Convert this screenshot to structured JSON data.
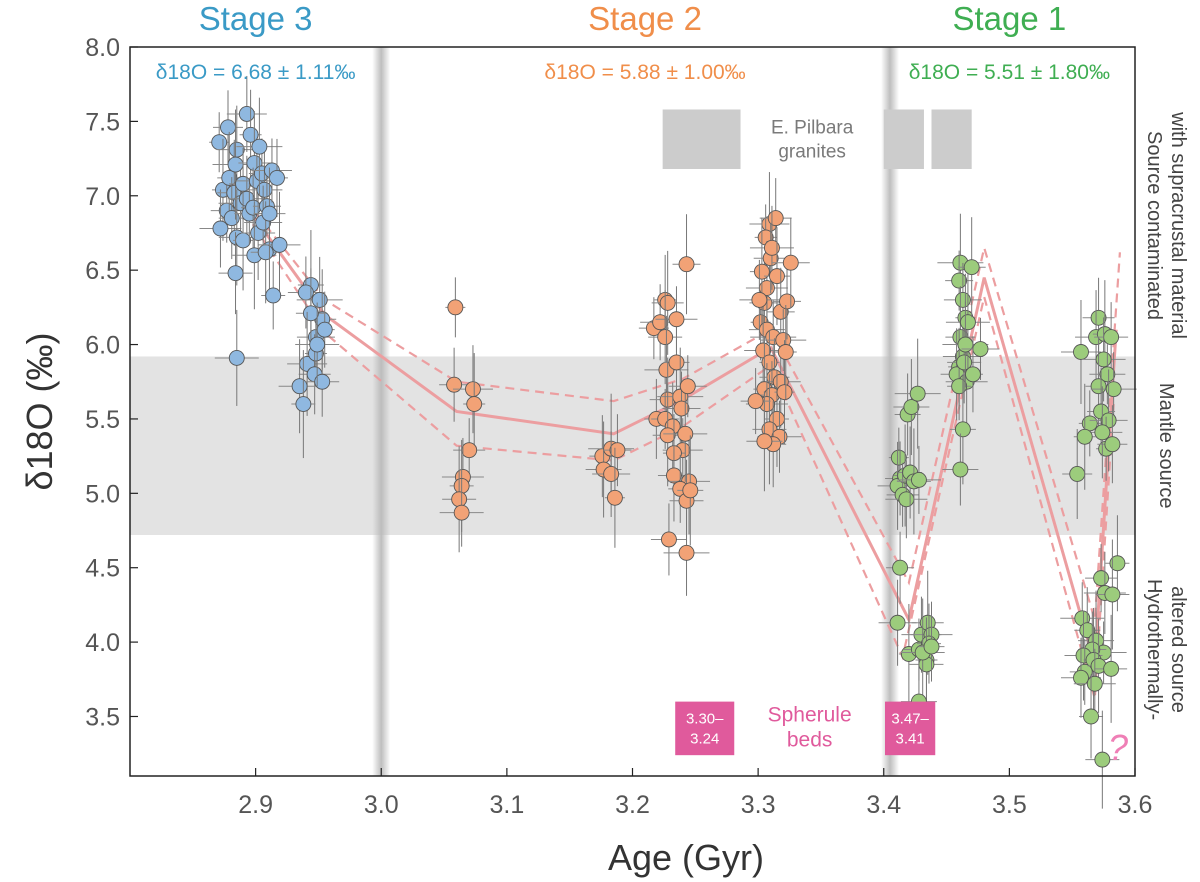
{
  "chart_data": {
    "type": "scatter",
    "xlabel": "Age (Gyr)",
    "ylabel": "δ18O (‰)",
    "xlim": [
      2.8,
      3.6
    ],
    "ylim": [
      3.1,
      8.0
    ],
    "x_ticks": [
      "2.9",
      "3.0",
      "3.1",
      "3.2",
      "3.3",
      "3.4",
      "3.5",
      "3.6"
    ],
    "y_ticks": [
      "3.5",
      "4.0",
      "4.5",
      "5.0",
      "5.5",
      "6.0",
      "6.5",
      "7.0",
      "7.5",
      "8.0"
    ],
    "grid": false,
    "colors": {
      "stage3": "#8fb8e0",
      "stage2": "#f2a276",
      "stage1": "#9ccc7c",
      "trend": "#ec9ea0",
      "box": "#e05a9c",
      "band": "#e3e3e3",
      "granite": "#cccccc"
    },
    "stages": [
      {
        "name": "Stage 3",
        "color": "#3a9ac6",
        "mean": "δ18O = 6.68 ± 1.11‰",
        "x": 2.9
      },
      {
        "name": "Stage 2",
        "color": "#f08e4a",
        "mean": "δ18O = 5.88 ± 1.00‰",
        "x": 3.21
      },
      {
        "name": "Stage 1",
        "color": "#3fae52",
        "mean": "δ18O = 5.51 ± 1.80‰",
        "x": 3.5
      }
    ],
    "stage_boundaries": [
      3.0,
      3.405
    ],
    "mantle_band": [
      4.72,
      5.92
    ],
    "right_labels": [
      {
        "lines": [
          "Source contaminated",
          "with supracrustal material"
        ],
        "y": 6.8
      },
      {
        "lines": [
          "Mantle source"
        ],
        "y": 5.32
      },
      {
        "lines": [
          "Hydrothermally-",
          "altered source"
        ],
        "y": 3.95
      }
    ],
    "granites": {
      "label": [
        "E. Pilbara",
        "granites"
      ],
      "bars": [
        [
          3.224,
          3.258
        ],
        [
          3.256,
          3.286
        ],
        [
          3.4,
          3.432
        ],
        [
          3.438,
          3.47
        ]
      ],
      "yrange": [
        7.18,
        7.58
      ]
    },
    "spherule": {
      "label": [
        "Spherule",
        "beds"
      ],
      "boxes": [
        {
          "lines": [
            "3.30–",
            "3.24"
          ],
          "x": [
            3.234,
            3.281
          ]
        },
        {
          "lines": [
            "3.47–",
            "3.41"
          ],
          "x": [
            3.401,
            3.441
          ]
        }
      ],
      "yrange": [
        3.24,
        3.6
      ]
    },
    "question_mark": "?",
    "trend": {
      "mean": [
        [
          2.878,
          7.1
        ],
        [
          2.955,
          6.2
        ],
        [
          3.06,
          5.55
        ],
        [
          3.185,
          5.4
        ],
        [
          3.24,
          5.63
        ],
        [
          3.31,
          5.98
        ],
        [
          3.42,
          4.15
        ],
        [
          3.48,
          6.45
        ],
        [
          3.568,
          3.85
        ],
        [
          3.585,
          6.1
        ]
      ],
      "upper": [
        [
          2.878,
          7.12
        ],
        [
          2.955,
          6.3
        ],
        [
          3.06,
          5.75
        ],
        [
          3.185,
          5.62
        ],
        [
          3.24,
          5.77
        ],
        [
          3.31,
          6.1
        ],
        [
          3.42,
          4.4
        ],
        [
          3.48,
          6.65
        ],
        [
          3.568,
          4.15
        ],
        [
          3.588,
          6.62
        ]
      ],
      "lower": [
        [
          2.878,
          7.06
        ],
        [
          2.955,
          6.08
        ],
        [
          3.06,
          5.32
        ],
        [
          3.185,
          5.22
        ],
        [
          3.24,
          5.45
        ],
        [
          3.31,
          5.86
        ],
        [
          3.415,
          3.9
        ],
        [
          3.48,
          6.32
        ],
        [
          3.568,
          3.62
        ],
        [
          3.583,
          5.6
        ]
      ]
    },
    "series": [
      {
        "name": "Stage 3",
        "color": "#8fb8e0",
        "points": [
          [
            2.871,
            7.36
          ],
          [
            2.878,
            7.46
          ],
          [
            2.885,
            7.31
          ],
          [
            2.874,
            7.04
          ],
          [
            2.877,
            6.9
          ],
          [
            2.872,
            6.78
          ],
          [
            2.879,
            7.12
          ],
          [
            2.883,
            7.02
          ],
          [
            2.888,
            6.95
          ],
          [
            2.881,
            6.85
          ],
          [
            2.885,
            6.72
          ],
          [
            2.884,
            7.21
          ],
          [
            2.89,
            7.08
          ],
          [
            2.893,
            6.98
          ],
          [
            2.89,
            6.7
          ],
          [
            2.895,
            6.88
          ],
          [
            2.893,
            7.55
          ],
          [
            2.896,
            7.41
          ],
          [
            2.899,
            7.22
          ],
          [
            2.901,
            7.1
          ],
          [
            2.898,
            6.92
          ],
          [
            2.902,
            6.75
          ],
          [
            2.899,
            6.6
          ],
          [
            2.905,
            7.15
          ],
          [
            2.907,
            7.04
          ],
          [
            2.903,
            7.33
          ],
          [
            2.909,
            6.93
          ],
          [
            2.906,
            6.82
          ],
          [
            2.911,
            6.64
          ],
          [
            2.908,
            6.62
          ],
          [
            2.913,
            7.17
          ],
          [
            2.917,
            7.12
          ],
          [
            2.911,
            6.88
          ],
          [
            2.919,
            6.67
          ],
          [
            2.914,
            6.33
          ],
          [
            2.884,
            6.48
          ],
          [
            2.885,
            5.91
          ],
          [
            2.944,
            6.4
          ],
          [
            2.94,
            6.35
          ],
          [
            2.951,
            6.3
          ],
          [
            2.953,
            6.17
          ],
          [
            2.948,
            6.05
          ],
          [
            2.955,
            6.1
          ],
          [
            2.944,
            6.21
          ],
          [
            2.941,
            5.87
          ],
          [
            2.948,
            5.94
          ],
          [
            2.947,
            5.8
          ],
          [
            2.935,
            5.72
          ],
          [
            2.938,
            5.6
          ],
          [
            2.953,
            5.75
          ],
          [
            2.949,
            6.0
          ]
        ]
      },
      {
        "name": "Stage 2",
        "color": "#f2a276",
        "points": [
          [
            3.059,
            6.25
          ],
          [
            3.058,
            5.73
          ],
          [
            3.073,
            5.7
          ],
          [
            3.074,
            5.6
          ],
          [
            3.07,
            5.29
          ],
          [
            3.065,
            5.11
          ],
          [
            3.064,
            5.05
          ],
          [
            3.062,
            4.96
          ],
          [
            3.064,
            4.87
          ],
          [
            3.176,
            5.25
          ],
          [
            3.177,
            5.16
          ],
          [
            3.183,
            5.3
          ],
          [
            3.188,
            5.29
          ],
          [
            3.183,
            5.13
          ],
          [
            3.186,
            4.97
          ],
          [
            3.217,
            6.11
          ],
          [
            3.222,
            6.15
          ],
          [
            3.226,
            6.3
          ],
          [
            3.228,
            6.28
          ],
          [
            3.235,
            6.17
          ],
          [
            3.219,
            5.5
          ],
          [
            3.226,
            6.05
          ],
          [
            3.227,
            5.83
          ],
          [
            3.235,
            5.88
          ],
          [
            3.228,
            5.63
          ],
          [
            3.238,
            5.65
          ],
          [
            3.226,
            5.5
          ],
          [
            3.239,
            5.57
          ],
          [
            3.232,
            5.45
          ],
          [
            3.228,
            5.39
          ],
          [
            3.24,
            5.29
          ],
          [
            3.233,
            5.27
          ],
          [
            3.233,
            5.12
          ],
          [
            3.245,
            5.08
          ],
          [
            3.238,
            5.03
          ],
          [
            3.243,
            4.95
          ],
          [
            3.242,
            5.4
          ],
          [
            3.246,
            5.02
          ],
          [
            3.229,
            4.69
          ],
          [
            3.243,
            4.6
          ],
          [
            3.243,
            6.54
          ],
          [
            3.244,
            5.72
          ],
          [
            3.302,
            6.15
          ],
          [
            3.305,
            6.28
          ],
          [
            3.309,
            6.81
          ],
          [
            3.306,
            6.72
          ],
          [
            3.314,
            6.85
          ],
          [
            3.307,
            6.38
          ],
          [
            3.303,
            6.49
          ],
          [
            3.31,
            6.58
          ],
          [
            3.311,
            6.65
          ],
          [
            3.315,
            6.46
          ],
          [
            3.307,
            6.1
          ],
          [
            3.312,
            6.05
          ],
          [
            3.318,
            6.22
          ],
          [
            3.304,
            5.96
          ],
          [
            3.309,
            5.88
          ],
          [
            3.313,
            5.78
          ],
          [
            3.318,
            5.75
          ],
          [
            3.305,
            5.7
          ],
          [
            3.311,
            5.66
          ],
          [
            3.307,
            5.6
          ],
          [
            3.315,
            5.5
          ],
          [
            3.309,
            5.43
          ],
          [
            3.317,
            5.38
          ],
          [
            3.312,
            5.33
          ],
          [
            3.305,
            5.35
          ],
          [
            3.32,
            6.03
          ],
          [
            3.323,
            6.29
          ],
          [
            3.326,
            6.55
          ],
          [
            3.321,
            5.68
          ],
          [
            3.298,
            5.62
          ],
          [
            3.301,
            6.3
          ],
          [
            3.322,
            5.95
          ]
        ]
      },
      {
        "name": "Stage 1",
        "color": "#9ccc7c",
        "points": [
          [
            3.412,
            5.24
          ],
          [
            3.413,
            5.1
          ],
          [
            3.411,
            5.05
          ],
          [
            3.417,
            5.12
          ],
          [
            3.415,
            4.99
          ],
          [
            3.418,
            4.96
          ],
          [
            3.421,
            5.14
          ],
          [
            3.424,
            5.08
          ],
          [
            3.428,
            5.09
          ],
          [
            3.419,
            5.53
          ],
          [
            3.422,
            5.58
          ],
          [
            3.427,
            5.67
          ],
          [
            3.413,
            4.5
          ],
          [
            3.411,
            4.13
          ],
          [
            3.42,
            3.92
          ],
          [
            3.428,
            3.95
          ],
          [
            3.43,
            4.05
          ],
          [
            3.434,
            3.88
          ],
          [
            3.435,
            4.13
          ],
          [
            3.438,
            4.05
          ],
          [
            3.436,
            3.99
          ],
          [
            3.434,
            3.85
          ],
          [
            3.431,
            3.93
          ],
          [
            3.438,
            3.97
          ],
          [
            3.428,
            3.6
          ],
          [
            3.461,
            6.55
          ],
          [
            3.46,
            6.43
          ],
          [
            3.463,
            6.3
          ],
          [
            3.465,
            6.18
          ],
          [
            3.461,
            6.05
          ],
          [
            3.463,
            5.92
          ],
          [
            3.46,
            5.85
          ],
          [
            3.458,
            5.8
          ],
          [
            3.466,
            5.75
          ],
          [
            3.46,
            5.72
          ],
          [
            3.464,
            5.88
          ],
          [
            3.467,
            6.15
          ],
          [
            3.463,
            5.43
          ],
          [
            3.461,
            5.16
          ],
          [
            3.465,
            6.0
          ],
          [
            3.47,
            6.52
          ],
          [
            3.477,
            5.97
          ],
          [
            3.471,
            5.8
          ],
          [
            3.554,
            5.13
          ],
          [
            3.557,
            5.95
          ],
          [
            3.564,
            5.47
          ],
          [
            3.571,
            6.18
          ],
          [
            3.569,
            6.05
          ],
          [
            3.576,
            6.07
          ],
          [
            3.581,
            6.05
          ],
          [
            3.575,
            5.9
          ],
          [
            3.571,
            5.72
          ],
          [
            3.578,
            5.8
          ],
          [
            3.583,
            5.7
          ],
          [
            3.573,
            5.55
          ],
          [
            3.579,
            5.49
          ],
          [
            3.577,
            5.3
          ],
          [
            3.582,
            5.33
          ],
          [
            3.574,
            5.41
          ],
          [
            3.56,
            5.38
          ],
          [
            3.573,
            4.43
          ],
          [
            3.576,
            4.33
          ],
          [
            3.586,
            4.53
          ],
          [
            3.582,
            4.32
          ],
          [
            3.558,
            4.16
          ],
          [
            3.562,
            4.08
          ],
          [
            3.569,
            4.01
          ],
          [
            3.575,
            3.93
          ],
          [
            3.566,
            3.95
          ],
          [
            3.559,
            3.91
          ],
          [
            3.567,
            3.88
          ],
          [
            3.56,
            3.8
          ],
          [
            3.557,
            3.76
          ],
          [
            3.571,
            3.84
          ],
          [
            3.581,
            3.82
          ],
          [
            3.568,
            3.72
          ],
          [
            3.565,
            3.5
          ],
          [
            3.574,
            3.21
          ]
        ]
      }
    ]
  }
}
